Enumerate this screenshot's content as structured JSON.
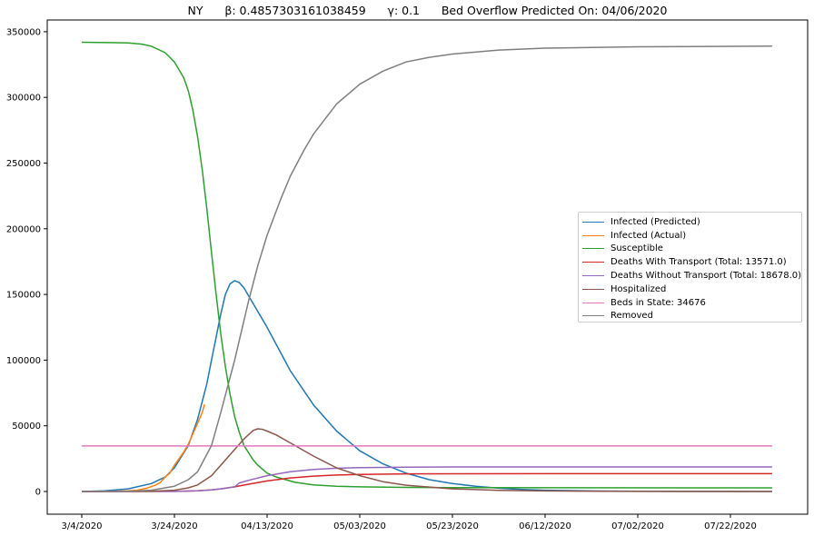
{
  "chart_data": {
    "type": "line",
    "title": "NY      β: 0.4857303161038459      γ: 0.1      Bed Overflow Predicted On: 04/06/2020",
    "title_parts": {
      "state": "NY",
      "beta_label": "β: 0.4857303161038459",
      "gamma_label": "γ: 0.1",
      "overflow_label": "Bed Overflow Predicted On: 04/06/2020"
    },
    "xlabel": "",
    "ylabel": "",
    "x_unit": "days since 3/4/2020",
    "xlim": [
      -8,
      157
    ],
    "ylim": [
      -17000,
      359000
    ],
    "grid": false,
    "legend_position": "center right",
    "x_ticks": [
      {
        "day": 0,
        "label": "3/4/2020"
      },
      {
        "day": 20,
        "label": "3/24/2020"
      },
      {
        "day": 40,
        "label": "04/13/2020"
      },
      {
        "day": 60,
        "label": "05/03/2020"
      },
      {
        "day": 80,
        "label": "05/23/2020"
      },
      {
        "day": 100,
        "label": "06/12/2020"
      },
      {
        "day": 120,
        "label": "07/02/2020"
      },
      {
        "day": 140,
        "label": "07/22/2020"
      }
    ],
    "y_ticks": [
      0,
      50000,
      100000,
      150000,
      200000,
      250000,
      300000,
      350000
    ],
    "series": [
      {
        "name": "Infected (Predicted)",
        "color": "#1f77b4",
        "points": [
          [
            0,
            0
          ],
          [
            5,
            500
          ],
          [
            10,
            2000
          ],
          [
            15,
            6000
          ],
          [
            18,
            11000
          ],
          [
            20,
            18000
          ],
          [
            23,
            35000
          ],
          [
            25,
            55000
          ],
          [
            27,
            82000
          ],
          [
            28,
            100000
          ],
          [
            30,
            135000
          ],
          [
            31,
            150000
          ],
          [
            32,
            158000
          ],
          [
            33,
            160500
          ],
          [
            34,
            159000
          ],
          [
            35,
            155000
          ],
          [
            37,
            143000
          ],
          [
            40,
            125000
          ],
          [
            45,
            92000
          ],
          [
            50,
            66000
          ],
          [
            55,
            46000
          ],
          [
            60,
            31000
          ],
          [
            65,
            21000
          ],
          [
            70,
            14000
          ],
          [
            75,
            9000
          ],
          [
            80,
            6000
          ],
          [
            85,
            4000
          ],
          [
            90,
            2500
          ],
          [
            95,
            1600
          ],
          [
            100,
            1000
          ],
          [
            110,
            400
          ],
          [
            120,
            150
          ],
          [
            130,
            60
          ],
          [
            149,
            10
          ]
        ]
      },
      {
        "name": "Infected (Actual)",
        "color": "#ff7f0e",
        "points": [
          [
            0,
            0
          ],
          [
            5,
            100
          ],
          [
            10,
            500
          ],
          [
            12,
            1000
          ],
          [
            14,
            2500
          ],
          [
            16,
            5000
          ],
          [
            17,
            7000
          ],
          [
            18,
            11000
          ],
          [
            19,
            14000
          ],
          [
            20,
            20000
          ],
          [
            21,
            25000
          ],
          [
            22,
            30000
          ],
          [
            23,
            36000
          ],
          [
            24,
            44000
          ],
          [
            25,
            52000
          ],
          [
            26,
            60000
          ],
          [
            26.5,
            66400
          ]
        ]
      },
      {
        "name": "Susceptible",
        "color": "#2ca02c",
        "points": [
          [
            0,
            342000
          ],
          [
            10,
            341500
          ],
          [
            13,
            340500
          ],
          [
            15,
            339000
          ],
          [
            18,
            334000
          ],
          [
            20,
            327000
          ],
          [
            22,
            315000
          ],
          [
            23,
            305000
          ],
          [
            24,
            290000
          ],
          [
            25,
            270000
          ],
          [
            26,
            245000
          ],
          [
            27,
            215000
          ],
          [
            28,
            182000
          ],
          [
            29,
            150000
          ],
          [
            30,
            120000
          ],
          [
            31,
            95000
          ],
          [
            32,
            74000
          ],
          [
            33,
            57000
          ],
          [
            34,
            45000
          ],
          [
            35,
            35000
          ],
          [
            37,
            24000
          ],
          [
            38,
            20000
          ],
          [
            40,
            14000
          ],
          [
            42,
            11000
          ],
          [
            46,
            7000
          ],
          [
            50,
            5000
          ],
          [
            55,
            4000
          ],
          [
            60,
            3500
          ],
          [
            70,
            3100
          ],
          [
            80,
            2900
          ],
          [
            149,
            2800
          ]
        ]
      },
      {
        "name": "Deaths With Transport (Total: 13571.0)",
        "color": "#d62728",
        "points": [
          [
            0,
            0
          ],
          [
            15,
            50
          ],
          [
            20,
            100
          ],
          [
            25,
            500
          ],
          [
            28,
            1200
          ],
          [
            30,
            2000
          ],
          [
            33,
            3500
          ],
          [
            36,
            5500
          ],
          [
            40,
            8000
          ],
          [
            45,
            10300
          ],
          [
            50,
            11700
          ],
          [
            55,
            12500
          ],
          [
            60,
            13000
          ],
          [
            70,
            13400
          ],
          [
            80,
            13520
          ],
          [
            100,
            13565
          ],
          [
            149,
            13571
          ]
        ]
      },
      {
        "name": "Deaths Without Transport (Total: 18678.0)",
        "color": "#9467bd",
        "points": [
          [
            0,
            0
          ],
          [
            15,
            50
          ],
          [
            20,
            100
          ],
          [
            25,
            500
          ],
          [
            28,
            1200
          ],
          [
            30,
            2000
          ],
          [
            33,
            3500
          ],
          [
            34,
            6500
          ],
          [
            36,
            8500
          ],
          [
            40,
            12000
          ],
          [
            45,
            15000
          ],
          [
            50,
            16800
          ],
          [
            55,
            17700
          ],
          [
            60,
            18200
          ],
          [
            70,
            18550
          ],
          [
            80,
            18650
          ],
          [
            100,
            18675
          ],
          [
            149,
            18678
          ]
        ]
      },
      {
        "name": "Hospitalized",
        "color": "#8c564b",
        "points": [
          [
            0,
            0
          ],
          [
            15,
            200
          ],
          [
            20,
            1000
          ],
          [
            23,
            2800
          ],
          [
            25,
            5000
          ],
          [
            28,
            12000
          ],
          [
            30,
            20000
          ],
          [
            32,
            28000
          ],
          [
            35,
            40000
          ],
          [
            37,
            46500
          ],
          [
            38,
            47700
          ],
          [
            39,
            47300
          ],
          [
            40,
            46000
          ],
          [
            42,
            43000
          ],
          [
            45,
            37000
          ],
          [
            50,
            27000
          ],
          [
            55,
            18000
          ],
          [
            60,
            12000
          ],
          [
            65,
            7500
          ],
          [
            70,
            4800
          ],
          [
            80,
            2000
          ],
          [
            90,
            900
          ],
          [
            100,
            400
          ],
          [
            120,
            100
          ],
          [
            149,
            20
          ]
        ]
      },
      {
        "name": "Beds in State: 34676",
        "color": "#e377c2",
        "points": [
          [
            0,
            34676
          ],
          [
            149,
            34676
          ]
        ]
      },
      {
        "name": "Removed",
        "color": "#7f7f7f",
        "points": [
          [
            0,
            0
          ],
          [
            10,
            200
          ],
          [
            15,
            1000
          ],
          [
            20,
            4000
          ],
          [
            23,
            9000
          ],
          [
            25,
            15000
          ],
          [
            28,
            35000
          ],
          [
            30,
            60000
          ],
          [
            33,
            100000
          ],
          [
            36,
            145000
          ],
          [
            38,
            172000
          ],
          [
            40,
            195000
          ],
          [
            43,
            223000
          ],
          [
            45,
            240000
          ],
          [
            48,
            260000
          ],
          [
            50,
            272000
          ],
          [
            55,
            295000
          ],
          [
            60,
            310000
          ],
          [
            65,
            320000
          ],
          [
            70,
            327000
          ],
          [
            75,
            330500
          ],
          [
            80,
            333000
          ],
          [
            90,
            336000
          ],
          [
            100,
            337500
          ],
          [
            120,
            338500
          ],
          [
            149,
            339000
          ]
        ]
      }
    ]
  }
}
